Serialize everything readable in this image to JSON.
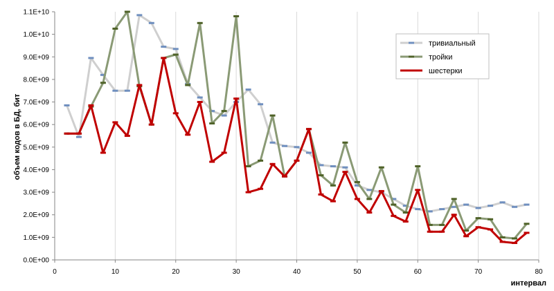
{
  "chart_data": {
    "type": "line",
    "title": "",
    "xlabel": "интервал",
    "ylabel": "объем кодов в БД, бит",
    "xlim": [
      0,
      80
    ],
    "ylim": [
      0,
      11000000000
    ],
    "xticks": [
      0,
      10,
      20,
      30,
      40,
      50,
      60,
      70,
      80
    ],
    "xtick_labels": [
      "0",
      "10",
      "20",
      "30",
      "40",
      "50",
      "60",
      "70",
      "80"
    ],
    "yticks": [
      0,
      1000000000,
      2000000000,
      3000000000,
      4000000000,
      5000000000,
      6000000000,
      7000000000,
      8000000000,
      9000000000,
      10000000000,
      11000000000
    ],
    "ytick_labels": [
      "0.0E+00",
      "1.0E+09",
      "2.0E+09",
      "3.0E+09",
      "4.0E+09",
      "5.0E+09",
      "6.0E+09",
      "7.0E+09",
      "8.0E+09",
      "9.0E+09",
      "1.0E+10",
      "1.1E+10"
    ],
    "grid": "vertical",
    "legend_position": "right",
    "x": [
      2,
      4,
      6,
      8,
      10,
      12,
      14,
      16,
      18,
      20,
      22,
      24,
      26,
      28,
      30,
      32,
      34,
      36,
      38,
      40,
      42,
      44,
      46,
      48,
      50,
      52,
      54,
      56,
      58,
      60,
      62,
      64,
      66,
      68,
      70,
      72,
      74,
      76,
      78
    ],
    "series": [
      {
        "name": "тривиальный",
        "color": "#cfcfcf",
        "marker_color": "#6f8fbf",
        "line_width": 3,
        "values": [
          6850000000.0,
          5450000000.0,
          8950000000.0,
          8200000000.0,
          7500000000.0,
          7500000000.0,
          10850000000.0,
          10500000000.0,
          9450000000.0,
          9350000000.0,
          7800000000.0,
          7200000000.0,
          6600000000.0,
          6400000000.0,
          7000000000.0,
          7550000000.0,
          6900000000.0,
          5200000000.0,
          5050000000.0,
          5000000000.0,
          4750000000.0,
          4200000000.0,
          4150000000.0,
          4100000000.0,
          3300000000.0,
          3100000000.0,
          3000000000.0,
          2700000000.0,
          2400000000.0,
          2250000000.0,
          2150000000.0,
          2250000000.0,
          2350000000.0,
          2450000000.0,
          2300000000.0,
          2400000000.0,
          2550000000.0,
          2350000000.0,
          2450000000.0
        ]
      },
      {
        "name": "тройки",
        "color": "#8a9a75",
        "marker_color": "#4f6228",
        "line_width": 3,
        "values": [
          5600000000.0,
          5600000000.0,
          6800000000.0,
          7850000000.0,
          10250000000.0,
          11000000000.0,
          7700000000.0,
          6000000000.0,
          8950000000.0,
          9100000000.0,
          7750000000.0,
          10500000000.0,
          6050000000.0,
          6600000000.0,
          10800000000.0,
          4150000000.0,
          4400000000.0,
          6400000000.0,
          3700000000.0,
          4400000000.0,
          5800000000.0,
          3750000000.0,
          3300000000.0,
          5200000000.0,
          3450000000.0,
          2700000000.0,
          4100000000.0,
          2450000000.0,
          2100000000.0,
          4150000000.0,
          1550000000.0,
          1550000000.0,
          2700000000.0,
          1300000000.0,
          1850000000.0,
          1800000000.0,
          1000000000.0,
          950000000.0,
          1600000000.0
        ]
      },
      {
        "name": "шестерки",
        "color": "#c00000",
        "marker_color": "#c00000",
        "line_width": 3,
        "values": [
          5600000000.0,
          5600000000.0,
          6850000000.0,
          4750000000.0,
          6100000000.0,
          5500000000.0,
          7750000000.0,
          6000000000.0,
          8950000000.0,
          6500000000.0,
          5550000000.0,
          7000000000.0,
          4350000000.0,
          4750000000.0,
          7150000000.0,
          3000000000.0,
          3150000000.0,
          4250000000.0,
          3700000000.0,
          4400000000.0,
          5800000000.0,
          2900000000.0,
          2600000000.0,
          3900000000.0,
          2700000000.0,
          2100000000.0,
          3050000000.0,
          1950000000.0,
          1700000000.0,
          3100000000.0,
          1250000000.0,
          1250000000.0,
          2000000000.0,
          1050000000.0,
          1450000000.0,
          1350000000.0,
          800000000.0,
          750000000.0,
          1200000000.0
        ]
      }
    ]
  }
}
